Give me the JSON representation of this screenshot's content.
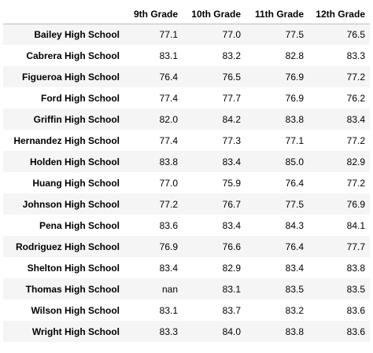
{
  "table": {
    "columns": [
      "",
      "9th Grade",
      "10th Grade",
      "11th Grade",
      "12th Grade"
    ],
    "rows": [
      {
        "school": "Bailey High School",
        "values": [
          "77.1",
          "77.0",
          "77.5",
          "76.5"
        ]
      },
      {
        "school": "Cabrera High School",
        "values": [
          "83.1",
          "83.2",
          "82.8",
          "83.3"
        ]
      },
      {
        "school": "Figueroa High School",
        "values": [
          "76.4",
          "76.5",
          "76.9",
          "77.2"
        ]
      },
      {
        "school": "Ford High School",
        "values": [
          "77.4",
          "77.7",
          "76.9",
          "76.2"
        ]
      },
      {
        "school": "Griffin High School",
        "values": [
          "82.0",
          "84.2",
          "83.8",
          "83.4"
        ]
      },
      {
        "school": "Hernandez High School",
        "values": [
          "77.4",
          "77.3",
          "77.1",
          "77.2"
        ]
      },
      {
        "school": "Holden High School",
        "values": [
          "83.8",
          "83.4",
          "85.0",
          "82.9"
        ]
      },
      {
        "school": "Huang High School",
        "values": [
          "77.0",
          "75.9",
          "76.4",
          "77.2"
        ]
      },
      {
        "school": "Johnson High School",
        "values": [
          "77.2",
          "76.7",
          "77.5",
          "76.9"
        ]
      },
      {
        "school": "Pena High School",
        "values": [
          "83.6",
          "83.4",
          "84.3",
          "84.1"
        ]
      },
      {
        "school": "Rodriguez High School",
        "values": [
          "76.9",
          "76.6",
          "76.4",
          "77.7"
        ]
      },
      {
        "school": "Shelton High School",
        "values": [
          "83.4",
          "82.9",
          "83.4",
          "83.8"
        ]
      },
      {
        "school": "Thomas High School",
        "values": [
          "nan",
          "83.1",
          "83.5",
          "83.5"
        ]
      },
      {
        "school": "Wilson High School",
        "values": [
          "83.1",
          "83.7",
          "83.2",
          "83.6"
        ]
      },
      {
        "school": "Wright High School",
        "values": [
          "83.3",
          "84.0",
          "83.8",
          "83.6"
        ]
      }
    ]
  }
}
